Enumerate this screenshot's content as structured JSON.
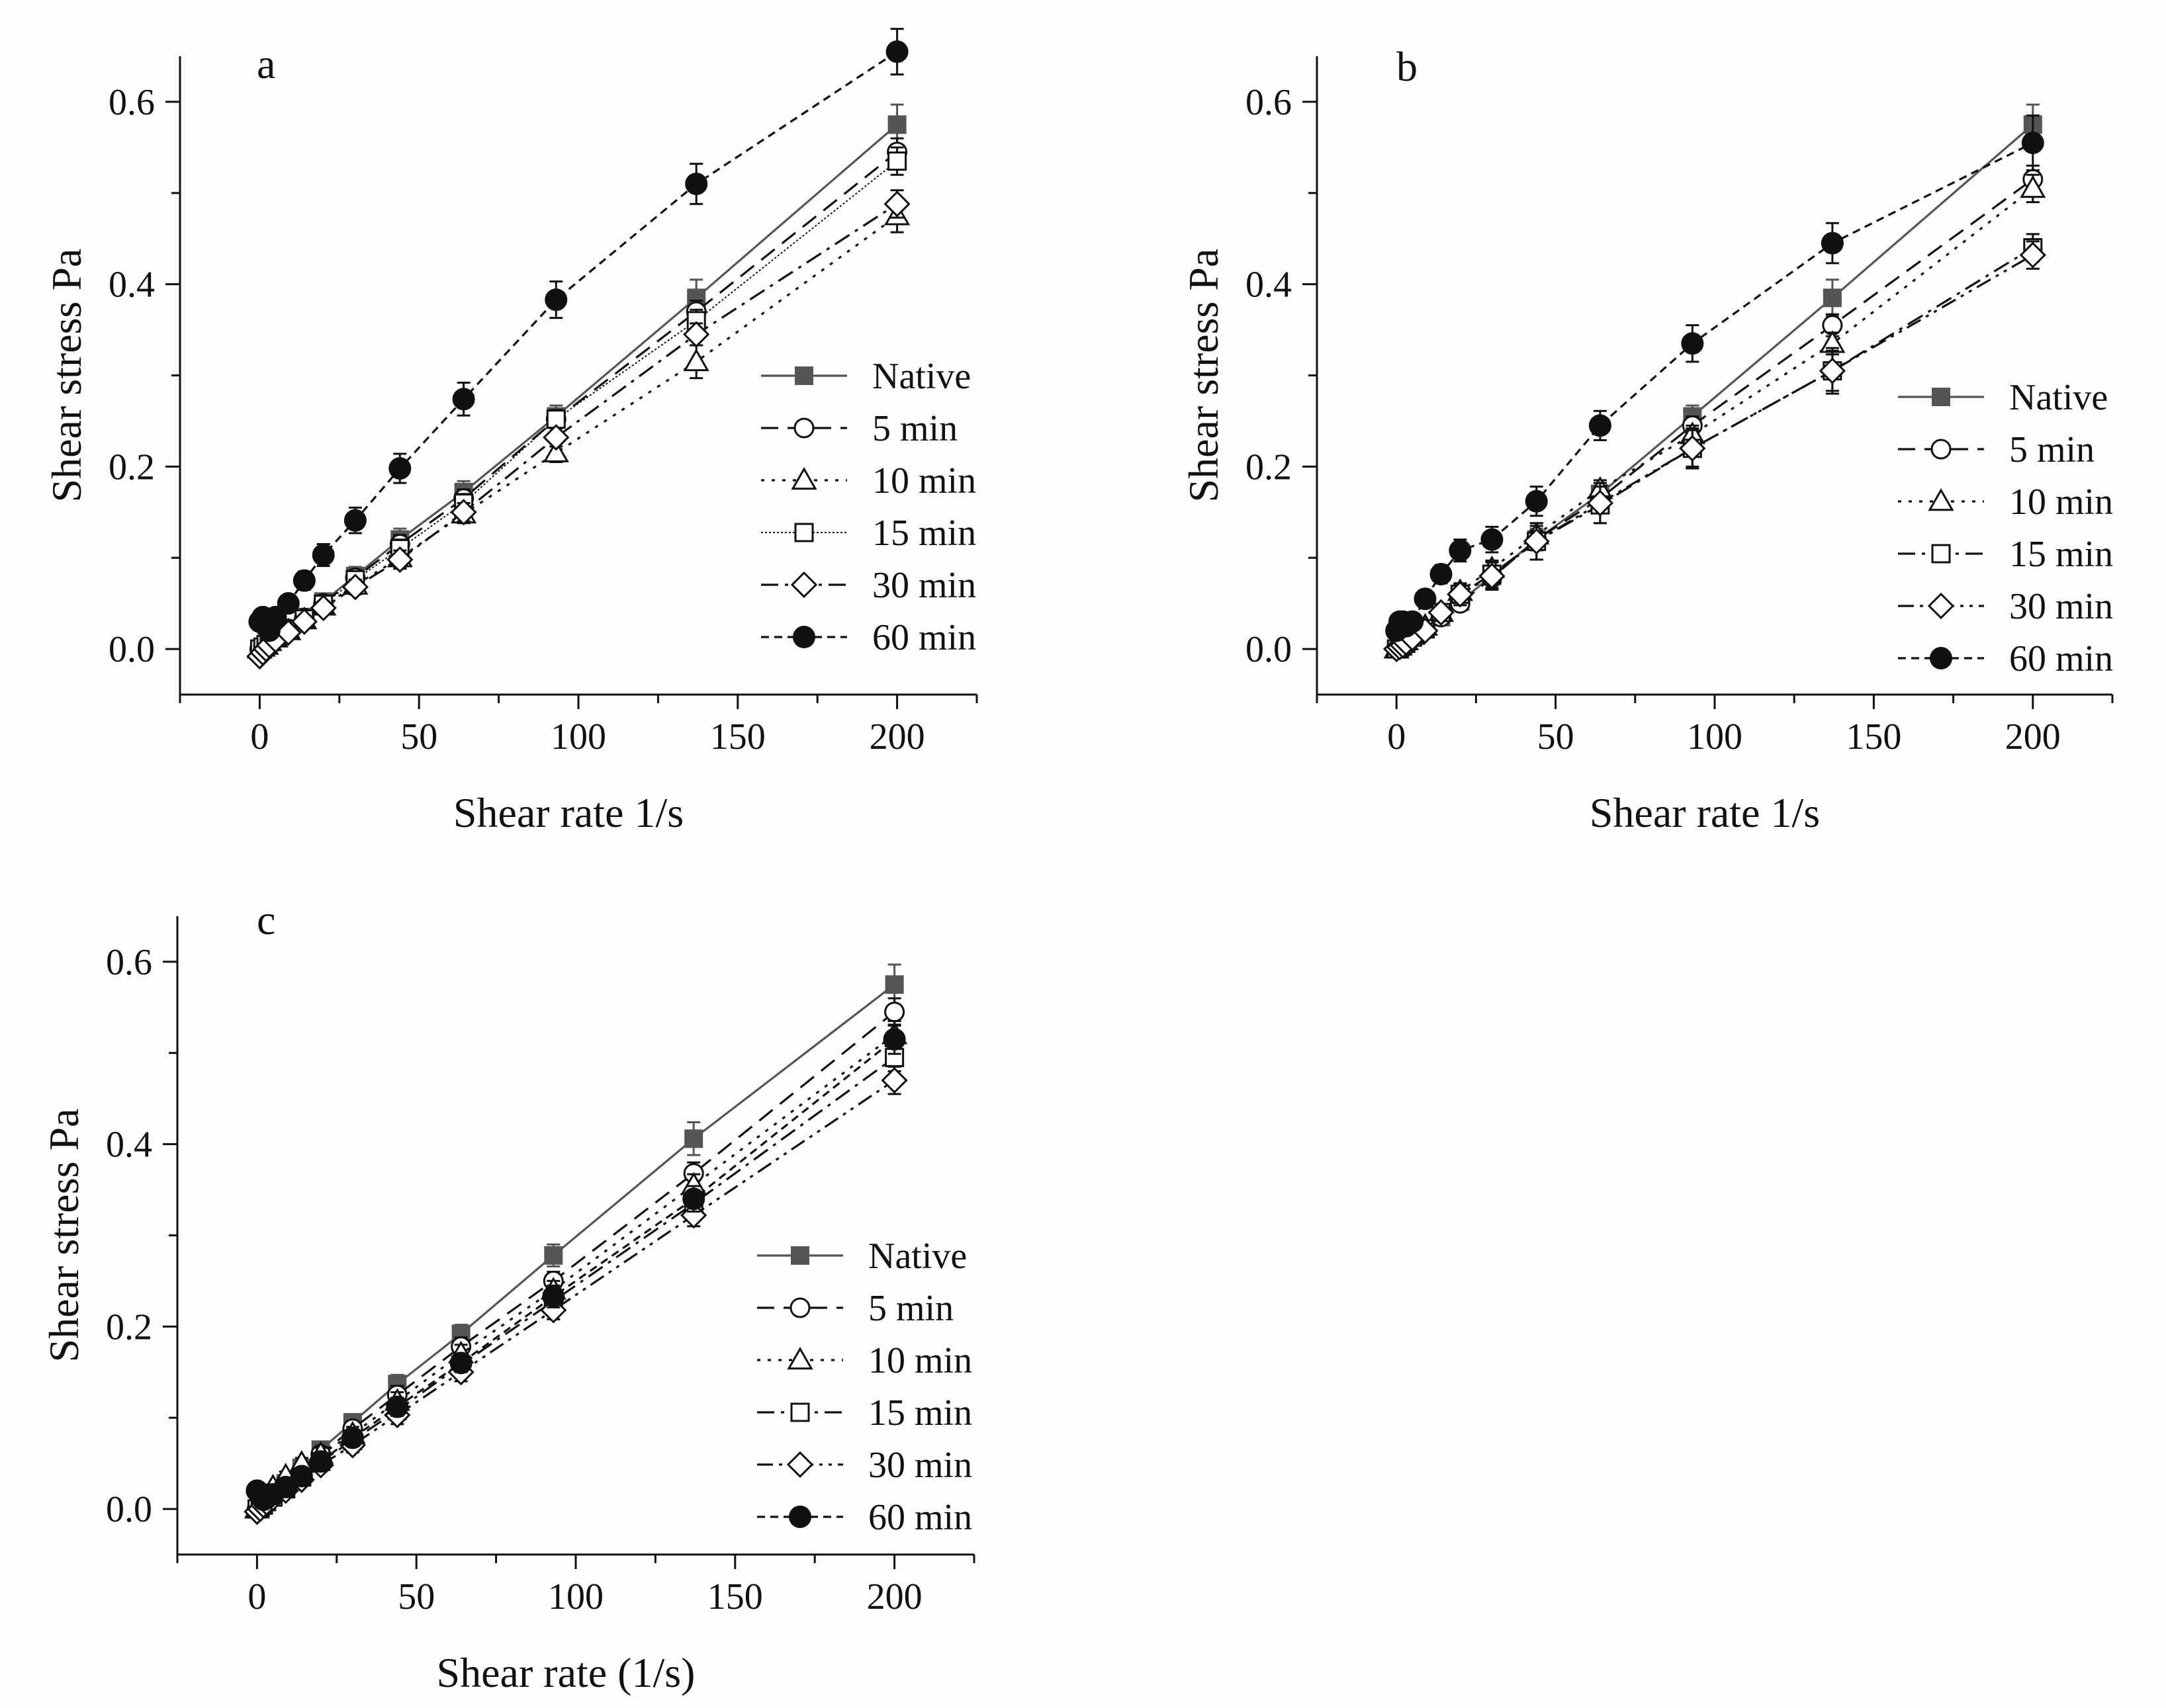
{
  "figure": {
    "background": "#fdfdfd",
    "ink": "#111111",
    "native_color": "#555555"
  },
  "chart_data": [
    {
      "type": "line",
      "panel_label": "a",
      "xlabel": "Shear rate 1/s",
      "ylabel": "Shear stress Pa",
      "xlim": [
        -25,
        225
      ],
      "ylim": [
        -0.05,
        0.65
      ],
      "xticks": [
        "0",
        "50",
        "100",
        "150",
        "200"
      ],
      "yticks": [
        "0.0",
        "0.2",
        "0.4",
        "0.6"
      ],
      "legend_position": "lower-right",
      "x": [
        0,
        1,
        2,
        3,
        5,
        9,
        14,
        20,
        30,
        44,
        64,
        93,
        137,
        200
      ],
      "series": [
        {
          "name": "Native",
          "marker": "square-filled",
          "dash": "solid",
          "values": [
            0.0,
            0.002,
            0.005,
            0.008,
            0.013,
            0.022,
            0.035,
            0.052,
            0.08,
            0.12,
            0.172,
            0.255,
            0.385,
            0.575
          ],
          "errors": [
            0,
            0,
            0,
            0,
            0,
            0.005,
            0.007,
            0.008,
            0.01,
            0.012,
            0.012,
            0.012,
            0.02,
            0.022
          ]
        },
        {
          "name": "5 min",
          "marker": "circle-open",
          "dash": "dash",
          "values": [
            0.0,
            0.003,
            0.006,
            0.009,
            0.014,
            0.022,
            0.034,
            0.05,
            0.078,
            0.115,
            0.165,
            0.252,
            0.37,
            0.545
          ],
          "errors": [
            0,
            0,
            0,
            0,
            0,
            0.005,
            0.006,
            0.007,
            0.008,
            0.01,
            0.01,
            0.01,
            0.012,
            0.015
          ]
        },
        {
          "name": "10 min",
          "marker": "triangle-open",
          "dash": "dot",
          "values": [
            0.0,
            0.002,
            0.004,
            0.008,
            0.012,
            0.02,
            0.032,
            0.047,
            0.07,
            0.1,
            0.148,
            0.215,
            0.315,
            0.475
          ],
          "errors": [
            0,
            0,
            0,
            0,
            0,
            0.005,
            0.006,
            0.007,
            0.008,
            0.01,
            0.01,
            0.01,
            0.018,
            0.018
          ]
        },
        {
          "name": "15 min",
          "marker": "square-open",
          "dash": "thin",
          "values": [
            0.0,
            0.002,
            0.005,
            0.008,
            0.013,
            0.021,
            0.033,
            0.049,
            0.076,
            0.11,
            0.16,
            0.252,
            0.36,
            0.535
          ],
          "errors": [
            0,
            0,
            0,
            0,
            0,
            0.005,
            0.006,
            0.007,
            0.008,
            0.01,
            0.01,
            0.01,
            0.012,
            0.015
          ]
        },
        {
          "name": "30 min",
          "marker": "diamond-open",
          "dash": "dashdot",
          "values": [
            -0.008,
            -0.004,
            0.0,
            0.004,
            0.01,
            0.018,
            0.03,
            0.045,
            0.068,
            0.098,
            0.15,
            0.232,
            0.345,
            0.488
          ],
          "errors": [
            0,
            0,
            0,
            0,
            0,
            0.005,
            0.006,
            0.007,
            0.008,
            0.01,
            0.01,
            0.01,
            0.012,
            0.015
          ]
        },
        {
          "name": "60 min",
          "marker": "circle-filled",
          "dash": "shortdash",
          "values": [
            0.03,
            0.035,
            0.025,
            0.02,
            0.035,
            0.05,
            0.075,
            0.103,
            0.141,
            0.198,
            0.274,
            0.383,
            0.51,
            0.655
          ],
          "errors": [
            0,
            0,
            0,
            0,
            0,
            0.008,
            0.01,
            0.012,
            0.014,
            0.016,
            0.018,
            0.02,
            0.022,
            0.025
          ]
        }
      ]
    },
    {
      "type": "line",
      "panel_label": "b",
      "xlabel": "Shear rate 1/s",
      "ylabel": "Shear stress Pa",
      "xlim": [
        -25,
        225
      ],
      "ylim": [
        -0.05,
        0.65
      ],
      "xticks": [
        "0",
        "50",
        "100",
        "150",
        "200"
      ],
      "yticks": [
        "0.0",
        "0.2",
        "0.4",
        "0.6"
      ],
      "legend_position": "lower-right",
      "x": [
        0,
        1,
        2,
        3,
        5,
        9,
        14,
        20,
        30,
        44,
        64,
        93,
        137,
        200
      ],
      "series": [
        {
          "name": "Native",
          "marker": "square-filled",
          "dash": "solid",
          "values": [
            0.0,
            0.002,
            0.005,
            0.008,
            0.013,
            0.022,
            0.035,
            0.052,
            0.08,
            0.12,
            0.17,
            0.255,
            0.385,
            0.575
          ],
          "errors": [
            0,
            0,
            0,
            0,
            0,
            0.005,
            0.007,
            0.008,
            0.01,
            0.012,
            0.012,
            0.012,
            0.02,
            0.022
          ]
        },
        {
          "name": "5 min",
          "marker": "circle-open",
          "dash": "dash",
          "values": [
            0.0,
            0.002,
            0.005,
            0.008,
            0.013,
            0.022,
            0.035,
            0.05,
            0.078,
            0.12,
            0.165,
            0.245,
            0.355,
            0.515
          ],
          "errors": [
            0,
            0,
            0,
            0,
            0,
            0.005,
            0.006,
            0.007,
            0.008,
            0.01,
            0.01,
            0.01,
            0.012,
            0.015
          ]
        },
        {
          "name": "10 min",
          "marker": "triangle-open",
          "dash": "dot",
          "values": [
            0.0,
            0.003,
            0.006,
            0.009,
            0.015,
            0.025,
            0.04,
            0.063,
            0.088,
            0.125,
            0.175,
            0.235,
            0.335,
            0.505
          ],
          "errors": [
            0,
            0,
            0,
            0,
            0,
            0.005,
            0.006,
            0.007,
            0.008,
            0.01,
            0.01,
            0.01,
            0.012,
            0.015
          ]
        },
        {
          "name": "15 min",
          "marker": "square-open",
          "dash": "dashdot",
          "values": [
            0.0,
            0.002,
            0.005,
            0.008,
            0.013,
            0.022,
            0.04,
            0.06,
            0.082,
            0.118,
            0.158,
            0.22,
            0.305,
            0.44
          ],
          "errors": [
            0,
            0,
            0,
            0,
            0,
            0.005,
            0.006,
            0.012,
            0.015,
            0.02,
            0.02,
            0.02,
            0.022,
            0.015
          ]
        },
        {
          "name": "30 min",
          "marker": "diamond-open",
          "dash": "dashdotdot",
          "values": [
            0.0,
            0.002,
            0.004,
            0.007,
            0.012,
            0.02,
            0.04,
            0.06,
            0.08,
            0.118,
            0.16,
            0.22,
            0.305,
            0.432
          ],
          "errors": [
            0,
            0,
            0,
            0,
            0,
            0.005,
            0.006,
            0.012,
            0.015,
            0.02,
            0.022,
            0.022,
            0.025,
            0.015
          ]
        },
        {
          "name": "60 min",
          "marker": "circle-filled",
          "dash": "shortdash",
          "values": [
            0.02,
            0.03,
            0.03,
            0.025,
            0.03,
            0.055,
            0.082,
            0.108,
            0.12,
            0.162,
            0.245,
            0.335,
            0.445,
            0.555
          ],
          "errors": [
            0,
            0,
            0,
            0,
            0,
            0.008,
            0.01,
            0.012,
            0.014,
            0.016,
            0.016,
            0.02,
            0.022,
            0.03
          ]
        }
      ]
    },
    {
      "type": "line",
      "panel_label": "c",
      "xlabel": "Shear rate (1/s)",
      "ylabel": "Shear stress Pa",
      "xlim": [
        -25,
        225
      ],
      "ylim": [
        -0.05,
        0.65
      ],
      "xticks": [
        "0",
        "50",
        "100",
        "150",
        "200"
      ],
      "yticks": [
        "0.0",
        "0.2",
        "0.4",
        "0.6"
      ],
      "legend_position": "lower-right",
      "x": [
        0,
        1,
        2,
        3,
        5,
        9,
        14,
        20,
        30,
        44,
        64,
        93,
        137,
        200
      ],
      "series": [
        {
          "name": "Native",
          "marker": "square-filled",
          "dash": "solid",
          "values": [
            0.0,
            0.003,
            0.006,
            0.01,
            0.016,
            0.028,
            0.045,
            0.065,
            0.095,
            0.137,
            0.192,
            0.278,
            0.406,
            0.575
          ],
          "errors": [
            0,
            0,
            0,
            0,
            0,
            0.005,
            0.006,
            0.007,
            0.008,
            0.01,
            0.01,
            0.012,
            0.018,
            0.022
          ]
        },
        {
          "name": "5 min",
          "marker": "circle-open",
          "dash": "dash",
          "values": [
            0.0,
            0.002,
            0.005,
            0.009,
            0.015,
            0.026,
            0.042,
            0.06,
            0.088,
            0.125,
            0.178,
            0.25,
            0.368,
            0.545
          ],
          "errors": [
            0,
            0,
            0,
            0,
            0,
            0.005,
            0.006,
            0.007,
            0.008,
            0.01,
            0.01,
            0.01,
            0.012,
            0.015
          ]
        },
        {
          "name": "10 min",
          "marker": "triangle-open",
          "dash": "dot",
          "values": [
            0.0,
            0.004,
            0.008,
            0.014,
            0.024,
            0.036,
            0.05,
            0.06,
            0.082,
            0.118,
            0.17,
            0.24,
            0.355,
            0.52
          ],
          "errors": [
            0,
            0,
            0,
            0,
            0,
            0.005,
            0.006,
            0.007,
            0.008,
            0.01,
            0.01,
            0.01,
            0.012,
            0.015
          ]
        },
        {
          "name": "15 min",
          "marker": "square-open",
          "dash": "dashdot",
          "values": [
            0.0,
            0.002,
            0.005,
            0.008,
            0.013,
            0.022,
            0.035,
            0.052,
            0.075,
            0.108,
            0.158,
            0.228,
            0.335,
            0.495
          ],
          "errors": [
            0,
            0,
            0,
            0,
            0,
            0.005,
            0.006,
            0.007,
            0.008,
            0.01,
            0.01,
            0.01,
            0.012,
            0.015
          ]
        },
        {
          "name": "30 min",
          "marker": "diamond-open",
          "dash": "dashdotdot",
          "values": [
            -0.003,
            0.0,
            0.004,
            0.007,
            0.012,
            0.02,
            0.032,
            0.048,
            0.07,
            0.103,
            0.15,
            0.218,
            0.322,
            0.47
          ],
          "errors": [
            0,
            0,
            0,
            0,
            0,
            0.005,
            0.006,
            0.007,
            0.008,
            0.01,
            0.01,
            0.01,
            0.012,
            0.015
          ]
        },
        {
          "name": "60 min",
          "marker": "circle-filled",
          "dash": "shortdash",
          "values": [
            0.02,
            0.015,
            0.01,
            0.012,
            0.016,
            0.024,
            0.036,
            0.052,
            0.078,
            0.112,
            0.16,
            0.233,
            0.34,
            0.515
          ],
          "errors": [
            0,
            0,
            0,
            0,
            0,
            0.005,
            0.006,
            0.007,
            0.008,
            0.01,
            0.01,
            0.012,
            0.014,
            0.016
          ]
        }
      ]
    }
  ]
}
